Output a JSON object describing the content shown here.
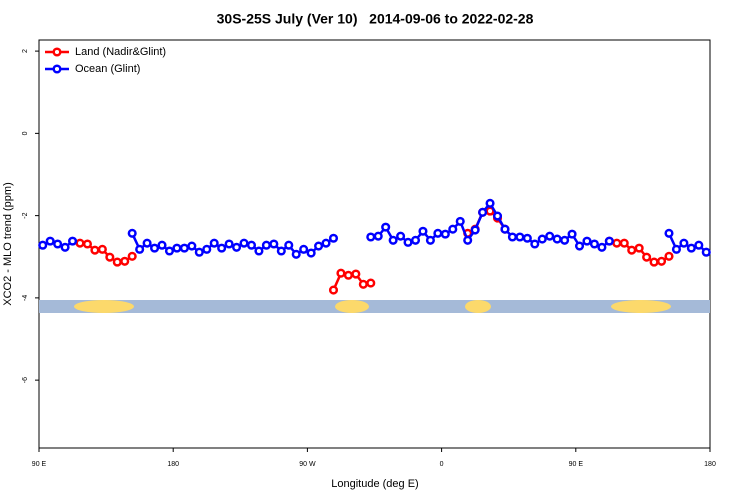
{
  "chart_data": {
    "type": "line",
    "title": "30S-25S July (Ver 10)   2014-09-06 to 2022-02-28",
    "xlabel": "Longitude (deg E)",
    "ylabel": "XCO2 - MLO trend (ppm)",
    "x": [
      92.5,
      97.5,
      102.5,
      107.5,
      112.5,
      117.5,
      122.5,
      127.5,
      132.5,
      137.5,
      142.5,
      147.5,
      152.5,
      157.5,
      162.5,
      167.5,
      172.5,
      177.5,
      182.5,
      187.5,
      192.5,
      197.5,
      202.5,
      207.5,
      212.5,
      217.5,
      222.5,
      227.5,
      232.5,
      237.5,
      242.5,
      247.5,
      252.5,
      257.5,
      262.5,
      267.5,
      272.5,
      277.5,
      282.5,
      287.5,
      292.5,
      297.5,
      302.5,
      307.5,
      312.5,
      317.5,
      322.5,
      327.5,
      332.5,
      337.5,
      342.5,
      347.5,
      352.5,
      357.5,
      362.5,
      367.5,
      372.5,
      377.5,
      382.5,
      387.5,
      392.5,
      397.5,
      402.5,
      407.5,
      412.5,
      417.5,
      422.5,
      427.5,
      432.5,
      437.5,
      442.5,
      447.5,
      452.5,
      457.5,
      462.5,
      467.5,
      472.5,
      477.5,
      482.5,
      487.5,
      492.5,
      497.5,
      502.5,
      507.5,
      512.5,
      517.5,
      522.5,
      527.5,
      532.5,
      537.5
    ],
    "series": [
      {
        "name": "Land (Nadir&Glint)",
        "color": "#ff0000",
        "values": [
          null,
          null,
          null,
          null,
          null,
          -2.67,
          -2.69,
          -2.84,
          -2.82,
          -3.01,
          -3.13,
          -3.11,
          -2.99,
          null,
          null,
          null,
          null,
          null,
          null,
          null,
          null,
          null,
          null,
          null,
          null,
          null,
          null,
          null,
          null,
          null,
          null,
          null,
          null,
          null,
          null,
          null,
          null,
          null,
          null,
          -3.81,
          -3.4,
          -3.45,
          -3.42,
          -3.67,
          -3.64,
          null,
          null,
          null,
          null,
          null,
          null,
          null,
          null,
          null,
          null,
          null,
          null,
          -2.43,
          -2.33,
          -1.92,
          -1.89,
          -2.06,
          -2.33,
          null,
          null,
          null,
          null,
          null,
          null,
          null,
          null,
          null,
          null,
          null,
          null,
          null,
          -2.62,
          -2.67,
          -2.67,
          -2.84,
          -2.79,
          -3.01,
          -3.13,
          -3.11,
          -2.99,
          null,
          null,
          null,
          null,
          null
        ]
      },
      {
        "name": "Ocean (Glint)",
        "color": "#0000ff",
        "values": [
          -2.72,
          -2.62,
          -2.69,
          -2.77,
          -2.62,
          null,
          null,
          null,
          null,
          null,
          null,
          null,
          -2.43,
          -2.82,
          -2.67,
          -2.79,
          -2.72,
          -2.86,
          -2.79,
          -2.79,
          -2.74,
          -2.89,
          -2.82,
          -2.67,
          -2.79,
          -2.69,
          -2.77,
          -2.67,
          -2.72,
          -2.86,
          -2.72,
          -2.69,
          -2.86,
          -2.72,
          -2.94,
          -2.82,
          -2.91,
          -2.74,
          -2.67,
          -2.55,
          null,
          null,
          null,
          null,
          -2.52,
          -2.5,
          -2.28,
          -2.6,
          -2.5,
          -2.65,
          -2.6,
          -2.38,
          -2.6,
          -2.43,
          -2.45,
          -2.33,
          -2.14,
          -2.6,
          -2.35,
          -1.92,
          -1.7,
          -2.01,
          -2.33,
          -2.52,
          -2.52,
          -2.55,
          -2.69,
          -2.57,
          -2.5,
          -2.57,
          -2.6,
          -2.45,
          -2.74,
          -2.62,
          -2.69,
          -2.77,
          -2.62,
          null,
          null,
          null,
          null,
          null,
          null,
          null,
          -2.43,
          -2.82,
          -2.67,
          -2.79,
          -2.72,
          -2.89
        ]
      }
    ],
    "xlim": [
      90,
      540
    ],
    "xticks": [
      {
        "value": 90,
        "label": "90 E"
      },
      {
        "value": 180,
        "label": "180"
      },
      {
        "value": 270,
        "label": "90 W"
      },
      {
        "value": 360,
        "label": "0"
      },
      {
        "value": 450,
        "label": "90 E"
      },
      {
        "value": 540,
        "label": "180"
      }
    ],
    "ylim": [
      -7.65,
      2.27
    ],
    "yticks": [
      -6,
      -4,
      -2,
      0,
      2
    ],
    "legend": "upper left"
  }
}
